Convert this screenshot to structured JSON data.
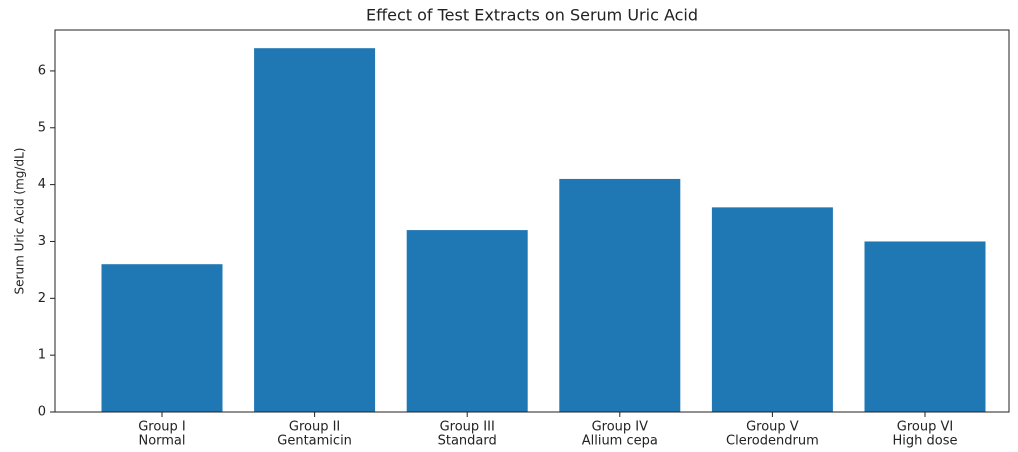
{
  "chart_data": {
    "type": "bar",
    "title": "Effect of Test Extracts on Serum Uric Acid",
    "ylabel": "Serum Uric Acid (mg/dL)",
    "categories": [
      [
        "Group I",
        "Normal"
      ],
      [
        "Group II",
        "Gentamicin"
      ],
      [
        "Group III",
        "Standard"
      ],
      [
        "Group IV",
        "Allium cepa"
      ],
      [
        "Group V",
        "Clerodendrum"
      ],
      [
        "Group VI",
        "High dose"
      ]
    ],
    "values": [
      2.6,
      6.4,
      3.2,
      4.1,
      3.6,
      3.0
    ],
    "color": "#1f77b4",
    "ylim": [
      0,
      6.72
    ],
    "yticks": [
      0,
      1,
      2,
      3,
      4,
      5,
      6
    ],
    "grid": false
  }
}
